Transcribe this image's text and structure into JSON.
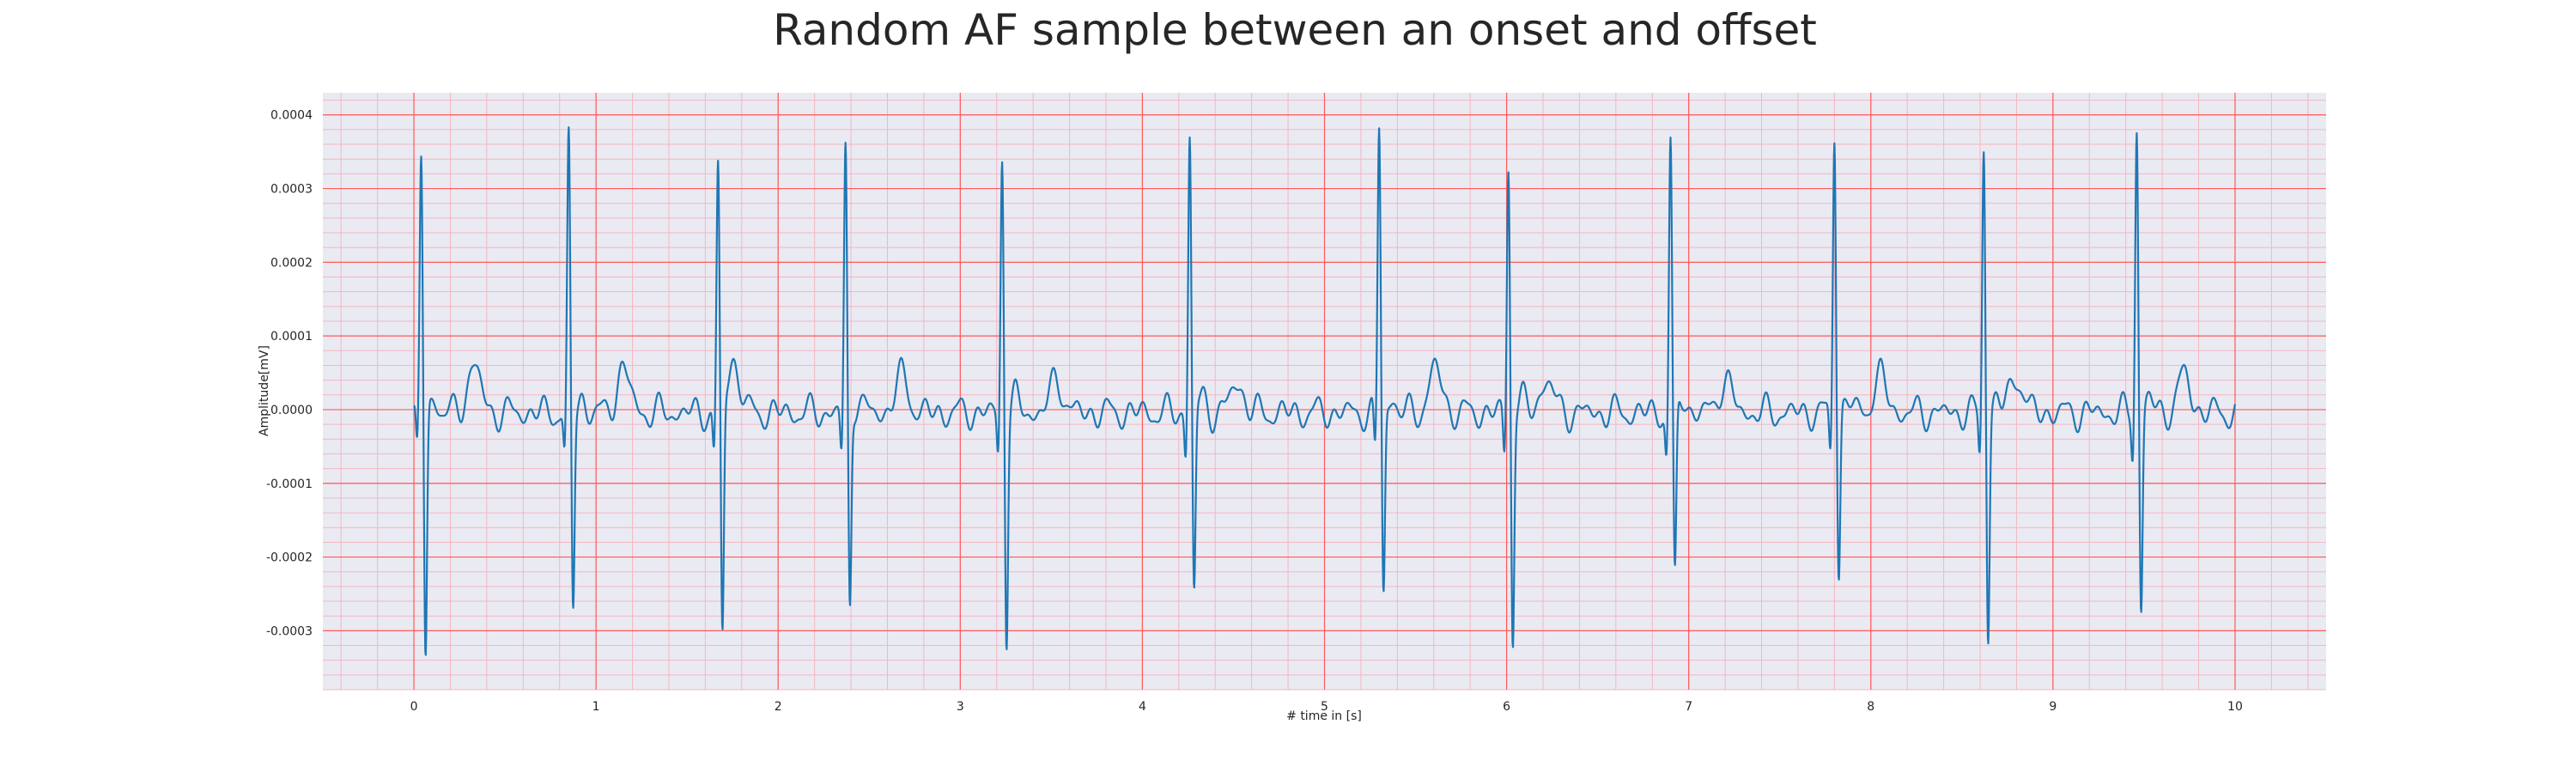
{
  "chart_data": {
    "type": "line",
    "title": "Random AF sample between an onset and offset",
    "xlabel": "# time in [s]",
    "ylabel": "Amplitude[mV]",
    "xlim": [
      -0.5,
      10.5
    ],
    "ylim": [
      -0.00038,
      0.00043
    ],
    "x_ticks": [
      0,
      1,
      2,
      3,
      4,
      5,
      6,
      7,
      8,
      9,
      10
    ],
    "x_tick_labels": [
      "0",
      "1",
      "2",
      "3",
      "4",
      "5",
      "6",
      "7",
      "8",
      "9",
      "10"
    ],
    "y_ticks": [
      -0.0003,
      -0.0002,
      -0.0001,
      0.0,
      0.0001,
      0.0002,
      0.0003,
      0.0004
    ],
    "y_tick_labels": [
      "-0.0003",
      "-0.0002",
      "-0.0001",
      "0.0000",
      "0.0001",
      "0.0002",
      "0.0003",
      "0.0004"
    ],
    "grid": true,
    "minor_grid": true,
    "colors": {
      "line": "#1f77b4",
      "plot_background": "#eaeaf2",
      "major_grid": "#ff5a5a",
      "minor_grid": "#f4b6c2",
      "text": "#262626"
    },
    "series": [
      {
        "beats": [
          {
            "t": 0.04,
            "peak": 0.00035,
            "trough": -0.000335
          },
          {
            "t": 0.85,
            "peak": 0.00037,
            "trough": -0.00027
          },
          {
            "t": 1.67,
            "peak": 0.00033,
            "trough": -0.00032
          },
          {
            "t": 2.37,
            "peak": 0.00036,
            "trough": -0.00027
          },
          {
            "t": 3.23,
            "peak": 0.00035,
            "trough": -0.000305
          },
          {
            "t": 4.26,
            "peak": 0.00038,
            "trough": -0.00025
          },
          {
            "t": 5.3,
            "peak": 0.00039,
            "trough": -0.00025
          },
          {
            "t": 6.01,
            "peak": 0.00034,
            "trough": -0.00031
          },
          {
            "t": 6.9,
            "peak": 0.00037,
            "trough": -0.000235
          },
          {
            "t": 7.8,
            "peak": 0.000385,
            "trough": -0.000225
          },
          {
            "t": 8.62,
            "peak": 0.000365,
            "trough": -0.000305
          },
          {
            "t": 9.46,
            "peak": 0.00039,
            "trough": -0.00027
          }
        ],
        "t_waves": [
          {
            "t": 0.33,
            "amp": 6.5e-05
          },
          {
            "t": 1.15,
            "amp": 6e-05
          },
          {
            "t": 1.76,
            "amp": 5.5e-05
          },
          {
            "t": 2.68,
            "amp": 5e-05
          },
          {
            "t": 3.53,
            "amp": 4.5e-05
          },
          {
            "t": 4.52,
            "amp": 4e-05
          },
          {
            "t": 5.61,
            "amp": 6e-05
          },
          {
            "t": 6.22,
            "amp": 4.5e-05
          },
          {
            "t": 7.2,
            "amp": 4.5e-05
          },
          {
            "t": 8.05,
            "amp": 5e-05
          },
          {
            "t": 8.8,
            "amp": 5e-05
          },
          {
            "t": 9.72,
            "amp": 5e-05
          }
        ],
        "t_start": 0.0,
        "t_end": 10.0
      }
    ]
  }
}
